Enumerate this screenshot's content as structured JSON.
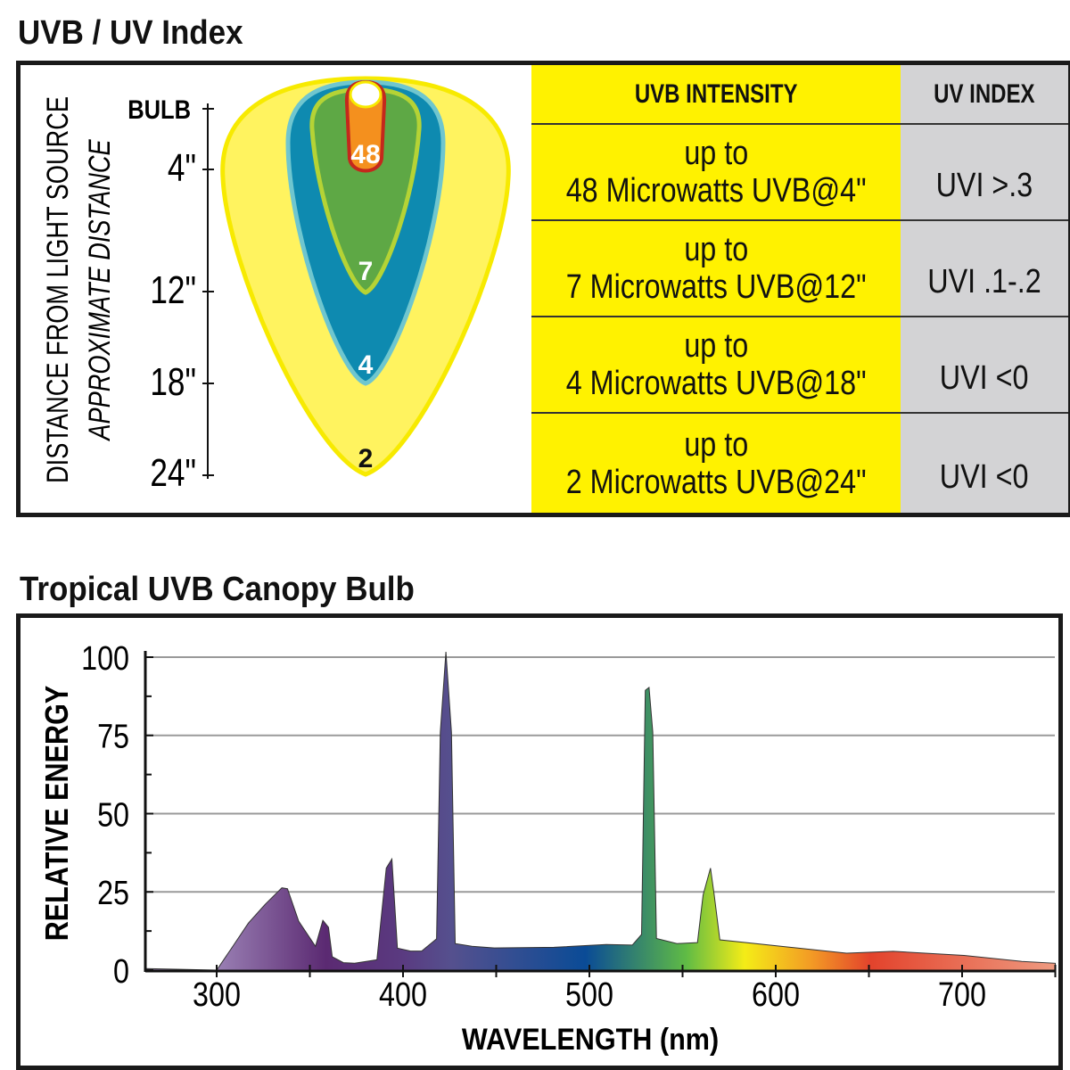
{
  "uv_section": {
    "title": "UVB / UV Index",
    "axis_label": "DISTANCE FROM LIGHT SOURCE",
    "axis_sublabel": "APPROXIMATE DISTANCE",
    "distance_ticks": [
      "BULB",
      "4\"",
      "12\"",
      "18\"",
      "24\""
    ],
    "zone_labels": [
      "48",
      "7",
      "4",
      "2"
    ],
    "table": {
      "headers": [
        "UVB INTENSITY",
        "UV INDEX"
      ],
      "rows": [
        {
          "line1": "up to",
          "line2": "48 Microwatts UVB@4\"",
          "uvi": "UVI >.3"
        },
        {
          "line1": "up to",
          "line2": "7 Microwatts UVB@12\"",
          "uvi": "UVI .1-.2"
        },
        {
          "line1": "up to",
          "line2": "4 Microwatts UVB@18\"",
          "uvi": "UVI <0"
        },
        {
          "line1": "up to",
          "line2": "2 Microwatts UVB@24\"",
          "uvi": "UVI <0"
        }
      ]
    },
    "colors": {
      "intensity_column": "#fff200",
      "index_column": "#d3d3d5",
      "zone_48": "#f4901e",
      "zone_7": "#5ea845",
      "zone_4": "#0e8ab0",
      "zone_2": "#fff35f"
    }
  },
  "chart_data": {
    "type": "area",
    "title": "Tropical UVB Canopy Bulb",
    "xlabel": "WAVELENGTH (nm)",
    "ylabel": "RELATIVE ENERGY",
    "xlim": [
      262,
      750
    ],
    "ylim": [
      0,
      100
    ],
    "xticks": [
      "300",
      "400",
      "500",
      "600",
      "700"
    ],
    "yticks": [
      "0",
      "25",
      "50",
      "75",
      "100"
    ],
    "grid": true,
    "fill": "spectral color gradient",
    "x": [
      262,
      300,
      308,
      317,
      326,
      335,
      338,
      344,
      353,
      357,
      360,
      362,
      368,
      374,
      386,
      391,
      394,
      397,
      404,
      410,
      418,
      420,
      423,
      426,
      428,
      437,
      449,
      481,
      509,
      523,
      528,
      530,
      532,
      534,
      536,
      547,
      558,
      561,
      565,
      567,
      570,
      638,
      663,
      701,
      732,
      750
    ],
    "y": [
      0.5,
      0,
      7,
      15,
      21,
      26.3,
      26,
      15.6,
      7.6,
      15.9,
      13.7,
      4.3,
      2.4,
      2.2,
      3.3,
      32.6,
      35.5,
      7,
      6.1,
      6.1,
      10,
      76,
      101.7,
      76,
      8.5,
      7.6,
      7.1,
      7.3,
      8.2,
      8,
      11.4,
      89.4,
      90.3,
      76,
      10.1,
      8.5,
      8.8,
      24,
      32.6,
      24,
      9.7,
      5.4,
      6,
      4.7,
      2.8,
      2.2
    ]
  }
}
